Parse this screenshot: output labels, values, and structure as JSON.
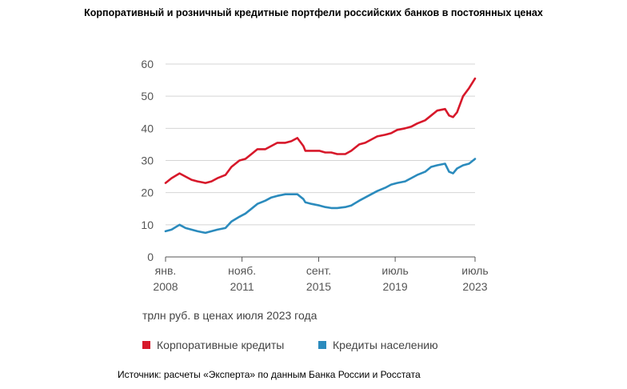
{
  "page": {
    "title": "Корпоративный и розничный кредитные портфели российских банков в постоянных ценах",
    "units_note": "трлн руб. в ценах июля 2023 года",
    "source": "Источник: расчеты «Эксперта» по данным Банка России и Росстата"
  },
  "chart_data": {
    "type": "line",
    "title": "Корпоративный и розничный кредитные портфели российских банков в постоянных ценах",
    "ylabel": "трлн руб. в ценах июля 2023 года",
    "xlabel": "",
    "ylim": [
      0,
      60
    ],
    "yticks": [
      0,
      10,
      20,
      30,
      40,
      50,
      60
    ],
    "xlim": [
      2008.0,
      2023.5
    ],
    "xticks": [
      {
        "value": 2008.0,
        "line1": "янв.",
        "line2": "2008"
      },
      {
        "value": 2011.83,
        "line1": "нояб.",
        "line2": "2011"
      },
      {
        "value": 2015.67,
        "line1": "сент.",
        "line2": "2015"
      },
      {
        "value": 2019.5,
        "line1": "июль",
        "line2": "2019"
      },
      {
        "value": 2023.5,
        "line1": "июль",
        "line2": "2023"
      }
    ],
    "grid": {
      "y": true,
      "x": false
    },
    "legend_position": "bottom",
    "series": [
      {
        "name": "Корпоративные кредиты",
        "color": "#d7182a",
        "x": [
          2008.0,
          2008.3,
          2008.7,
          2009.0,
          2009.3,
          2009.6,
          2010.0,
          2010.3,
          2010.6,
          2011.0,
          2011.3,
          2011.7,
          2012.0,
          2012.3,
          2012.6,
          2013.0,
          2013.3,
          2013.6,
          2014.0,
          2014.3,
          2014.6,
          2014.9,
          2015.0,
          2015.3,
          2015.7,
          2016.0,
          2016.3,
          2016.6,
          2017.0,
          2017.3,
          2017.7,
          2018.0,
          2018.3,
          2018.6,
          2019.0,
          2019.3,
          2019.6,
          2020.0,
          2020.3,
          2020.6,
          2021.0,
          2021.3,
          2021.6,
          2022.0,
          2022.2,
          2022.4,
          2022.6,
          2022.9,
          2023.2,
          2023.5
        ],
        "values": [
          23,
          24.5,
          26,
          25,
          24,
          23.5,
          23,
          23.5,
          24.5,
          25.5,
          28,
          30,
          30.5,
          32,
          33.5,
          33.5,
          34.5,
          35.5,
          35.5,
          36,
          37,
          34.5,
          33,
          33,
          33,
          32.5,
          32.5,
          32,
          32,
          33,
          35,
          35.5,
          36.5,
          37.5,
          38,
          38.5,
          39.5,
          40,
          40.5,
          41.5,
          42.5,
          44,
          45.5,
          46,
          44,
          43.5,
          45,
          50,
          52.5,
          55.5
        ]
      },
      {
        "name": "Кредиты населению",
        "color": "#2b8bbd",
        "x": [
          2008.0,
          2008.3,
          2008.7,
          2009.0,
          2009.3,
          2009.6,
          2010.0,
          2010.3,
          2010.6,
          2011.0,
          2011.3,
          2011.7,
          2012.0,
          2012.3,
          2012.6,
          2013.0,
          2013.3,
          2013.6,
          2014.0,
          2014.3,
          2014.6,
          2014.9,
          2015.0,
          2015.3,
          2015.7,
          2016.0,
          2016.3,
          2016.6,
          2017.0,
          2017.3,
          2017.7,
          2018.0,
          2018.3,
          2018.6,
          2019.0,
          2019.3,
          2019.6,
          2020.0,
          2020.3,
          2020.6,
          2021.0,
          2021.3,
          2021.6,
          2022.0,
          2022.2,
          2022.4,
          2022.6,
          2022.9,
          2023.2,
          2023.5
        ],
        "values": [
          8,
          8.5,
          10,
          9,
          8.5,
          8,
          7.5,
          8,
          8.5,
          9,
          11,
          12.5,
          13.5,
          15,
          16.5,
          17.5,
          18.5,
          19,
          19.5,
          19.5,
          19.5,
          18,
          17,
          16.5,
          16,
          15.5,
          15.2,
          15.2,
          15.5,
          16,
          17.5,
          18.5,
          19.5,
          20.5,
          21.5,
          22.5,
          23,
          23.5,
          24.5,
          25.5,
          26.5,
          28,
          28.5,
          29,
          26.5,
          26,
          27.5,
          28.5,
          29,
          30.5
        ]
      }
    ]
  }
}
